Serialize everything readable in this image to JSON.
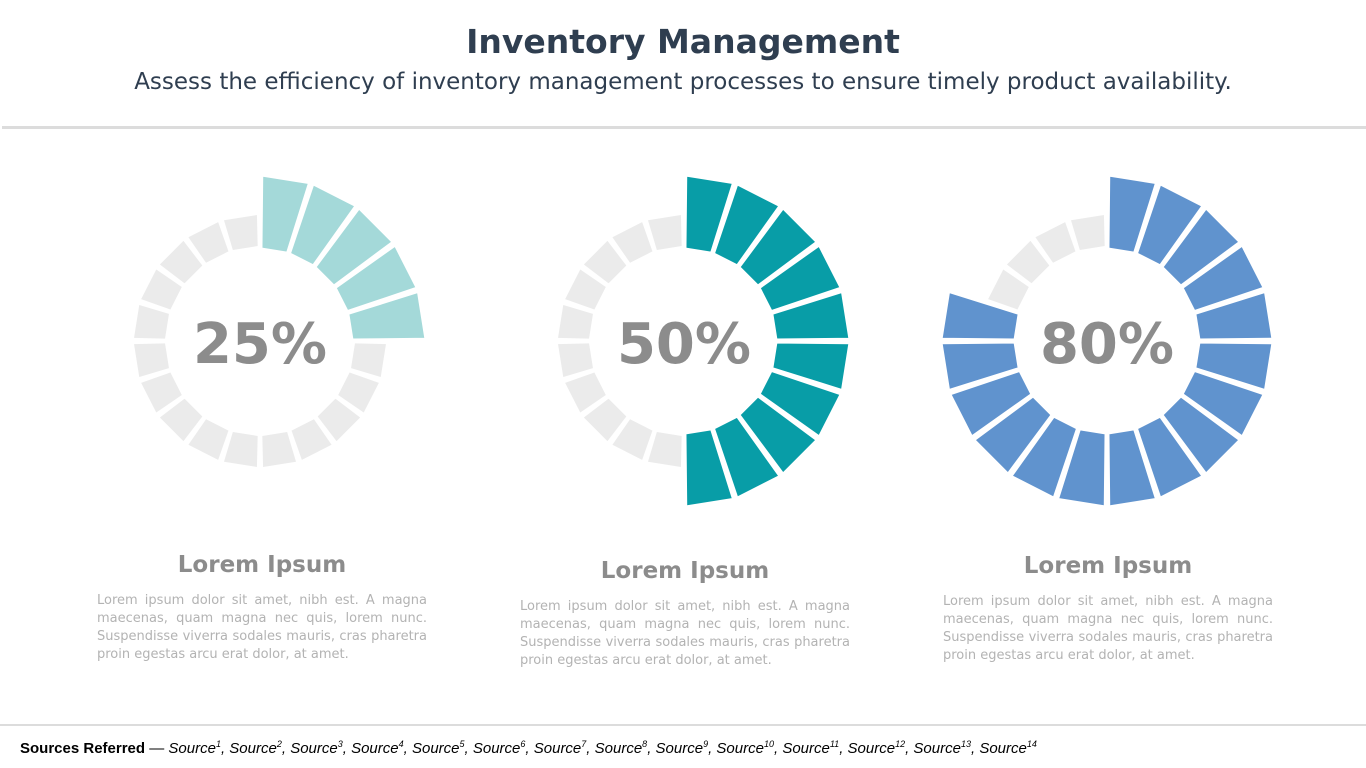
{
  "header": {
    "title": "Inventory Management",
    "subtitle": "Assess the efficiency of inventory management processes to ensure timely product availability."
  },
  "chart_data": {
    "type": "gauge",
    "segments_per_ring": 20,
    "background_color": "#ebebeb",
    "gauges": [
      {
        "value": 25,
        "label": "25%",
        "color": "#a1d8d8"
      },
      {
        "value": 50,
        "label": "50%",
        "color": "#009aa4"
      },
      {
        "value": 80,
        "label": "80%",
        "color": "#5b8fcc"
      }
    ]
  },
  "cards": [
    {
      "title": "Lorem Ipsum",
      "text": "Lorem ipsum dolor sit amet, nibh est. A magna maecenas, quam magna nec quis, lorem nunc. Suspendisse viverra sodales mauris, cras pharetra proin egestas arcu erat dolor, at amet."
    },
    {
      "title": "Lorem Ipsum",
      "text": "Lorem ipsum dolor sit amet, nibh est. A magna maecenas, quam magna nec quis, lorem nunc. Suspendisse viverra sodales mauris, cras pharetra proin egestas arcu erat dolor, at amet."
    },
    {
      "title": "Lorem Ipsum",
      "text": "Lorem ipsum dolor sit amet, nibh est. A magna maecenas, quam magna nec quis, lorem nunc. Suspendisse viverra sodales mauris, cras pharetra proin egestas arcu erat dolor, at amet."
    }
  ],
  "footer": {
    "label": "Sources Referred",
    "separator": " — ",
    "source_word": "Source",
    "sources": [
      "1",
      "2",
      "3",
      "4",
      "5",
      "6",
      "7",
      "8",
      "9",
      "10",
      "11",
      "12",
      "13",
      "14"
    ]
  }
}
